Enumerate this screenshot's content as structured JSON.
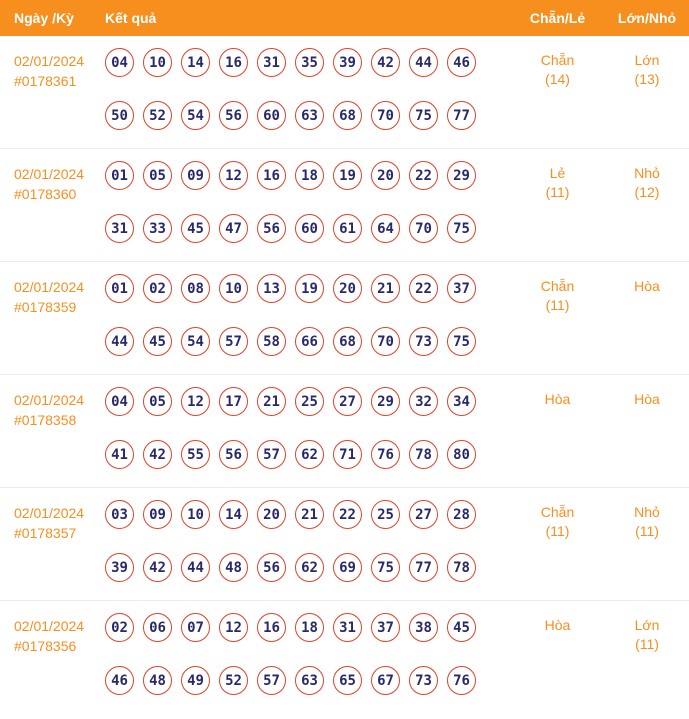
{
  "table": {
    "headers": {
      "date": "Ngày /Kỳ",
      "result": "Kết quả",
      "parity": "Chẵn/Lẻ",
      "size": "Lớn/Nhỏ"
    }
  },
  "rows": [
    {
      "date": "02/01/2024",
      "draw_id": "#0178361",
      "numbers_line1": [
        "04",
        "10",
        "14",
        "16",
        "31",
        "35",
        "39",
        "42",
        "44",
        "46"
      ],
      "numbers_line2": [
        "50",
        "52",
        "54",
        "56",
        "60",
        "63",
        "68",
        "70",
        "75",
        "77"
      ],
      "parity": "Chẵn",
      "parity_count": "(14)",
      "size": "Lớn",
      "size_count": "(13)"
    },
    {
      "date": "02/01/2024",
      "draw_id": "#0178360",
      "numbers_line1": [
        "01",
        "05",
        "09",
        "12",
        "16",
        "18",
        "19",
        "20",
        "22",
        "29"
      ],
      "numbers_line2": [
        "31",
        "33",
        "45",
        "47",
        "56",
        "60",
        "61",
        "64",
        "70",
        "75"
      ],
      "parity": "Lẻ",
      "parity_count": "(11)",
      "size": "Nhỏ",
      "size_count": "(12)"
    },
    {
      "date": "02/01/2024",
      "draw_id": "#0178359",
      "numbers_line1": [
        "01",
        "02",
        "08",
        "10",
        "13",
        "19",
        "20",
        "21",
        "22",
        "37"
      ],
      "numbers_line2": [
        "44",
        "45",
        "54",
        "57",
        "58",
        "66",
        "68",
        "70",
        "73",
        "75"
      ],
      "parity": "Chẵn",
      "parity_count": "(11)",
      "size": "Hòa",
      "size_count": ""
    },
    {
      "date": "02/01/2024",
      "draw_id": "#0178358",
      "numbers_line1": [
        "04",
        "05",
        "12",
        "17",
        "21",
        "25",
        "27",
        "29",
        "32",
        "34"
      ],
      "numbers_line2": [
        "41",
        "42",
        "55",
        "56",
        "57",
        "62",
        "71",
        "76",
        "78",
        "80"
      ],
      "parity": "Hòa",
      "parity_count": "",
      "size": "Hòa",
      "size_count": ""
    },
    {
      "date": "02/01/2024",
      "draw_id": "#0178357",
      "numbers_line1": [
        "03",
        "09",
        "10",
        "14",
        "20",
        "21",
        "22",
        "25",
        "27",
        "28"
      ],
      "numbers_line2": [
        "39",
        "42",
        "44",
        "48",
        "56",
        "62",
        "69",
        "75",
        "77",
        "78"
      ],
      "parity": "Chẵn",
      "parity_count": "(11)",
      "size": "Nhỏ",
      "size_count": "(11)"
    },
    {
      "date": "02/01/2024",
      "draw_id": "#0178356",
      "numbers_line1": [
        "02",
        "06",
        "07",
        "12",
        "16",
        "18",
        "31",
        "37",
        "38",
        "45"
      ],
      "numbers_line2": [
        "46",
        "48",
        "49",
        "52",
        "57",
        "63",
        "65",
        "67",
        "73",
        "76"
      ],
      "parity": "Hòa",
      "parity_count": "",
      "size": "Lớn",
      "size_count": "(11)"
    }
  ],
  "colors": {
    "header_bg": "#f78f1e",
    "accent_text": "#f78f1e",
    "ball_border": "#e0432c",
    "ball_text": "#292968"
  }
}
